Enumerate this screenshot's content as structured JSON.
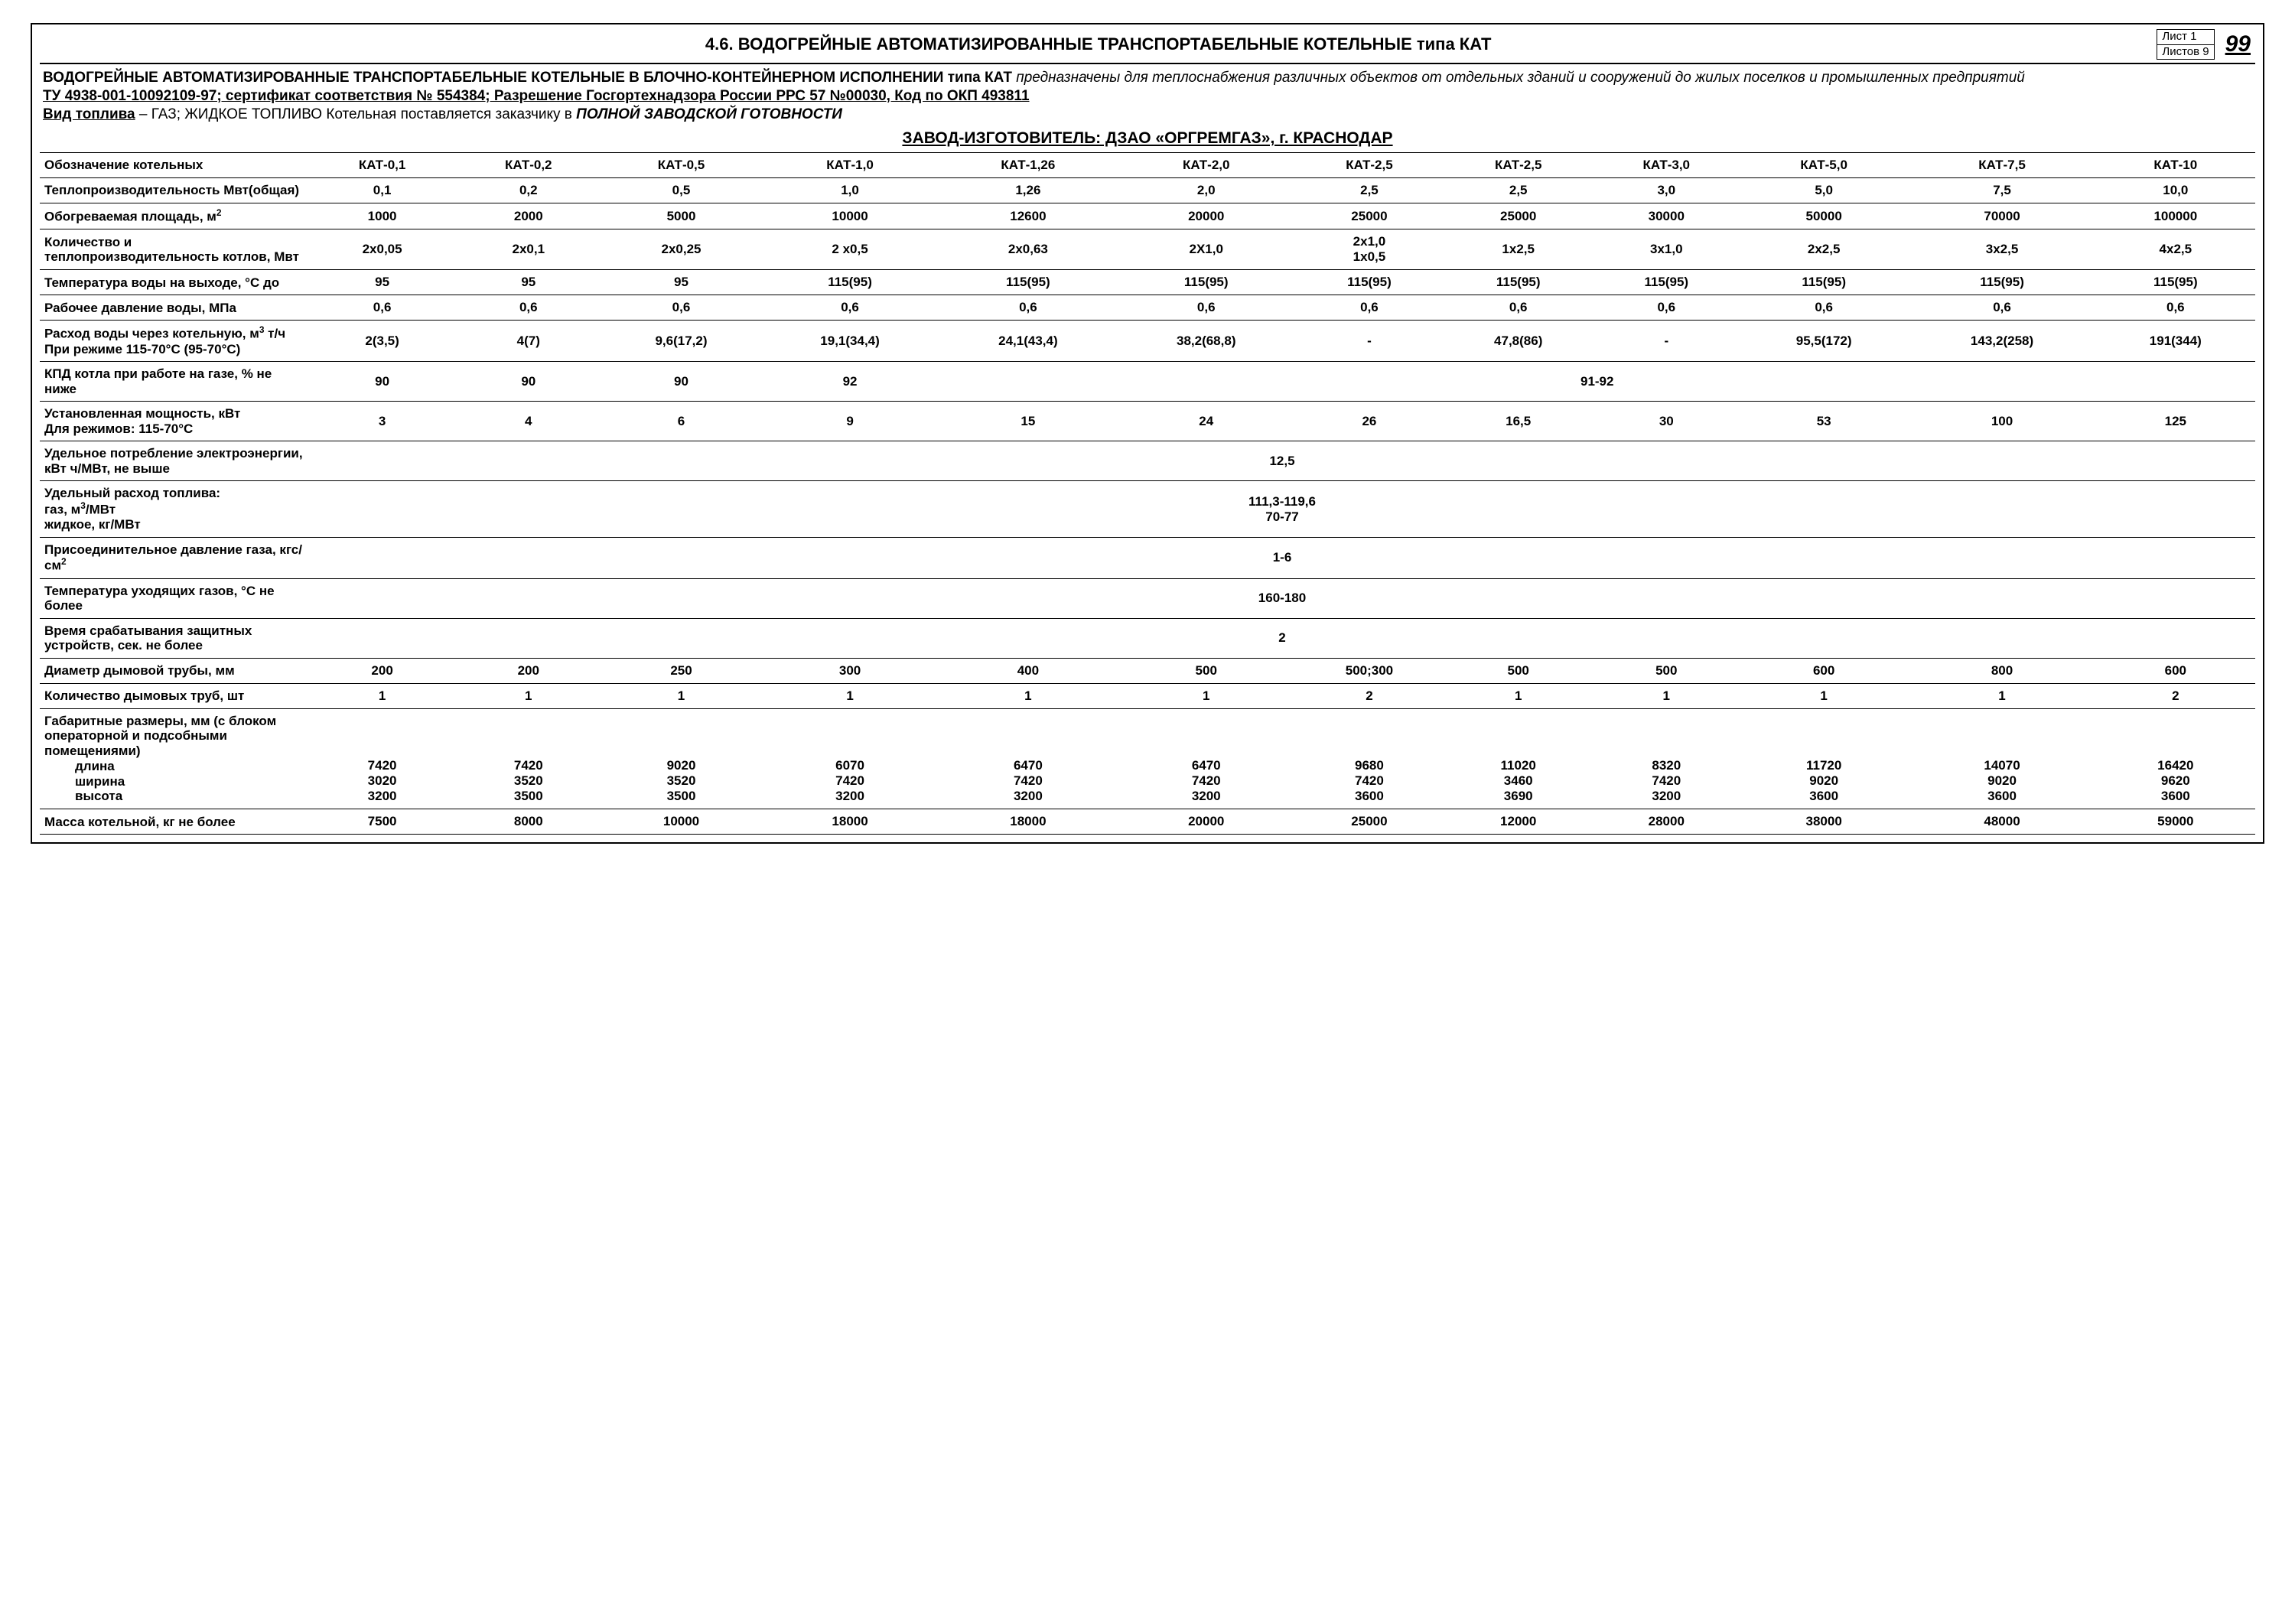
{
  "title": "4.6. ВОДОГРЕЙНЫЕ АВТОМАТИЗИРОВАННЫЕ ТРАНСПОРТАБЕЛЬНЫЕ КОТЕЛЬНЫЕ типа КАТ",
  "sheet_top": "Лист 1",
  "sheet_bot": "Листов 9",
  "page_num": "99",
  "intro": {
    "l1a": "ВОДОГРЕЙНЫЕ АВТОМАТИЗИРОВАННЫЕ ТРАНСПОРТАБЕЛЬНЫЕ КОТЕЛЬНЫЕ В БЛОЧНО-КОНТЕЙНЕРНОМ ИСПОЛНЕНИИ типа КАТ",
    "l1b": " предназначены для теплоснабжения различных объектов от отдельных зданий и сооружений до жилых поселков и промышленных предприятий",
    "l2": "ТУ 4938-001-10092109-97; сертификат соответствия № 554384; Разрешение Госгортехнадзора России РРС 57 №00030, Код по ОКП 493811",
    "l3a": "Вид топлива",
    "l3b": " – ГАЗ; ЖИДКОЕ ТОПЛИВО  Котельная поставляется заказчику в ",
    "l3c": "ПОЛНОЙ ЗАВОДСКОЙ ГОТОВНОСТИ"
  },
  "mfr": "ЗАВОД-ИЗГОТОВИТЕЛЬ: ДЗАО «ОРГРЕМГАЗ», г. КРАСНОДАР",
  "cols": [
    "КАТ-0,1",
    "КАТ-0,2",
    "КАТ-0,5",
    "КАТ-1,0",
    "КАТ-1,26",
    "КАТ-2,0",
    "КАТ-2,5",
    "КАТ-2,5",
    "КАТ-3,0",
    "КАТ-5,0",
    "КАТ-7,5",
    "КАТ-10"
  ],
  "rows": {
    "r0": {
      "label": "Обозначение котельных"
    },
    "r1": {
      "label": "Теплопроизводительность Мвт(общая)",
      "v": [
        "0,1",
        "0,2",
        "0,5",
        "1,0",
        "1,26",
        "2,0",
        "2,5",
        "2,5",
        "3,0",
        "5,0",
        "7,5",
        "10,0"
      ]
    },
    "r2": {
      "label_html": "Обогреваемая площадь, м<sup>2</sup>",
      "v": [
        "1000",
        "2000",
        "5000",
        "10000",
        "12600",
        "20000",
        "25000",
        "25000",
        "30000",
        "50000",
        "70000",
        "100000"
      ]
    },
    "r3": {
      "label": "Количество и теплопроизводительность котлов, Мвт",
      "v": [
        "2х0,05",
        "2х0,1",
        "2х0,25",
        "2 х0,5",
        "2х0,63",
        "2Х1,0",
        "2х1,0\n1х0,5",
        "1х2,5",
        "3х1,0",
        "2х2,5",
        "3х2,5",
        "4х2,5"
      ]
    },
    "r4": {
      "label": "Температура воды на выходе, °С до",
      "v": [
        "95",
        "95",
        "95",
        "115(95)",
        "115(95)",
        "115(95)",
        "115(95)",
        "115(95)",
        "115(95)",
        "115(95)",
        "115(95)",
        "115(95)"
      ]
    },
    "r5": {
      "label": "Рабочее давление воды, МПа",
      "v": [
        "0,6",
        "0,6",
        "0,6",
        "0,6",
        "0,6",
        "0,6",
        "0,6",
        "0,6",
        "0,6",
        "0,6",
        "0,6",
        "0,6"
      ]
    },
    "r6": {
      "label_html": "Расход воды через котельную, м<sup>3</sup> т/ч<br>При режиме 115-70°С (95-70°С)",
      "v": [
        "2(3,5)",
        "4(7)",
        "9,6(17,2)",
        "19,1(34,4)",
        "24,1(43,4)",
        "38,2(68,8)",
        "-",
        "47,8(86)",
        "-",
        "95,5(172)",
        "143,2(258)",
        "191(344)"
      ]
    },
    "r7": {
      "label": "КПД котла при работе на газе, % не ниже",
      "v4": [
        "90",
        "90",
        "90",
        "92"
      ],
      "merge": "91-92"
    },
    "r8": {
      "label": "Установленная мощность, кВт\nДля режимов: 115-70°С",
      "v": [
        "3",
        "4",
        "6",
        "9",
        "15",
        "24",
        "26",
        "16,5",
        "30",
        "53",
        "100",
        "125"
      ]
    },
    "r9": {
      "label": "Удельное потребление электроэнергии, кВт ч/МВт, не выше",
      "merge": "12,5"
    },
    "r10": {
      "label_html": "Удельный расход топлива:<br>газ, м<sup>3</sup>/МВт<br>жидкое, кг/МВт",
      "merge": "111,3-119,6\n70-77"
    },
    "r11": {
      "label_html": "Присоединительное давление газа, кгс/см<sup>2</sup>",
      "merge": "1-6"
    },
    "r12": {
      "label": "Температура уходящих газов, °С не более",
      "merge": "160-180"
    },
    "r13": {
      "label": "Время срабатывания защитных устройств, сек. не более",
      "merge": "2"
    },
    "r14": {
      "label": "Диаметр дымовой трубы, мм",
      "v": [
        "200",
        "200",
        "250",
        "300",
        "400",
        "500",
        "500;300",
        "500",
        "500",
        "600",
        "800",
        "600"
      ]
    },
    "r15": {
      "label": "Количество дымовых труб, шт",
      "v": [
        "1",
        "1",
        "1",
        "1",
        "1",
        "1",
        "2",
        "1",
        "1",
        "1",
        "1",
        "2"
      ]
    },
    "r16": {
      "label": "Габаритные размеры, мм (с блоком операторной и подсобными помещениями)",
      "sub": [
        "длина",
        "ширина",
        "высота"
      ],
      "v": [
        [
          "7420",
          "3020",
          "3200"
        ],
        [
          "7420",
          "3520",
          "3500"
        ],
        [
          "9020",
          "3520",
          "3500"
        ],
        [
          "6070",
          "7420",
          "3200"
        ],
        [
          "6470",
          "7420",
          "3200"
        ],
        [
          "6470",
          "7420",
          "3200"
        ],
        [
          "9680",
          "7420",
          "3600"
        ],
        [
          "11020",
          "3460",
          "3690"
        ],
        [
          "8320",
          "7420",
          "3200"
        ],
        [
          "11720",
          "9020",
          "3600"
        ],
        [
          "14070",
          "9020",
          "3600"
        ],
        [
          "16420",
          "9620",
          "3600"
        ]
      ]
    },
    "r17": {
      "label": "Масса котельной, кг не более",
      "v": [
        "7500",
        "8000",
        "10000",
        "18000",
        "18000",
        "20000",
        "25000",
        "12000",
        "28000",
        "38000",
        "48000",
        "59000"
      ]
    }
  }
}
